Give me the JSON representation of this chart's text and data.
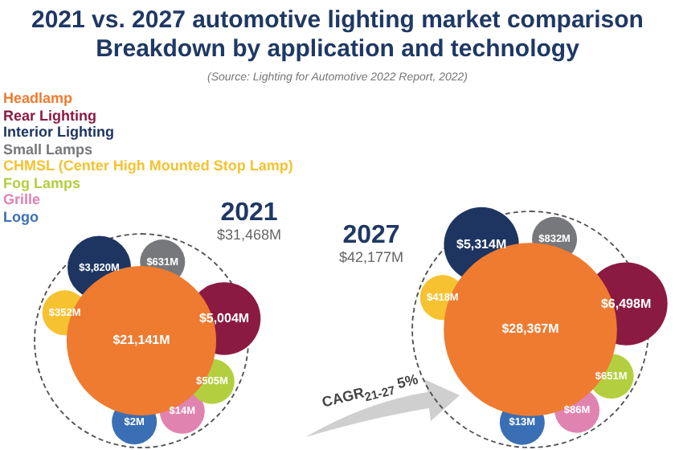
{
  "chart_data": {
    "type": "other",
    "title": "2021 vs. 2027 automotive lighting market comparison",
    "subtitle": "Breakdown by application and technology",
    "categories": [
      "2021",
      "2027"
    ],
    "series": [
      {
        "name": "Headlamp",
        "color": "#ee7b30",
        "values": [
          21141,
          28367
        ],
        "value_labels": [
          "$21,141M",
          "$28,367M"
        ]
      },
      {
        "name": "Rear Lighting",
        "color": "#8b1a42",
        "values": [
          5004,
          6498
        ],
        "value_labels": [
          "$5,004M",
          "$6,498M"
        ]
      },
      {
        "name": "Interior Lighting",
        "color": "#1e3561",
        "values": [
          3820,
          5314
        ],
        "value_labels": [
          "$3,820M",
          "$5,314M"
        ]
      },
      {
        "name": "Small Lamps",
        "color": "#77787b",
        "values": [
          631,
          832
        ],
        "value_labels": [
          "$631M",
          "$832M"
        ]
      },
      {
        "name": "CHMSL (Center High Mounted Stop Lamp)",
        "color": "#f6c231",
        "values": [
          352,
          418
        ],
        "value_labels": [
          "$352M",
          "$418M"
        ]
      },
      {
        "name": "Fog Lamps",
        "color": "#b3cf3f",
        "values": [
          505,
          651
        ],
        "value_labels": [
          "$505M",
          "$651M"
        ]
      },
      {
        "name": "Grille",
        "color": "#e083b0",
        "values": [
          14,
          86
        ],
        "value_labels": [
          "$14M",
          "$86M"
        ]
      },
      {
        "name": "Logo",
        "color": "#3a6fb5",
        "values": [
          2,
          13
        ],
        "value_labels": [
          "$2M",
          "$13M"
        ]
      }
    ],
    "annotations": [
      "$31,468M",
      "$42,177M",
      "CAGR$_{21-27}$ 5%",
      "(Source: Lighting for Automotive 2022 Report, 2022)"
    ],
    "legend": "top left"
  }
}
